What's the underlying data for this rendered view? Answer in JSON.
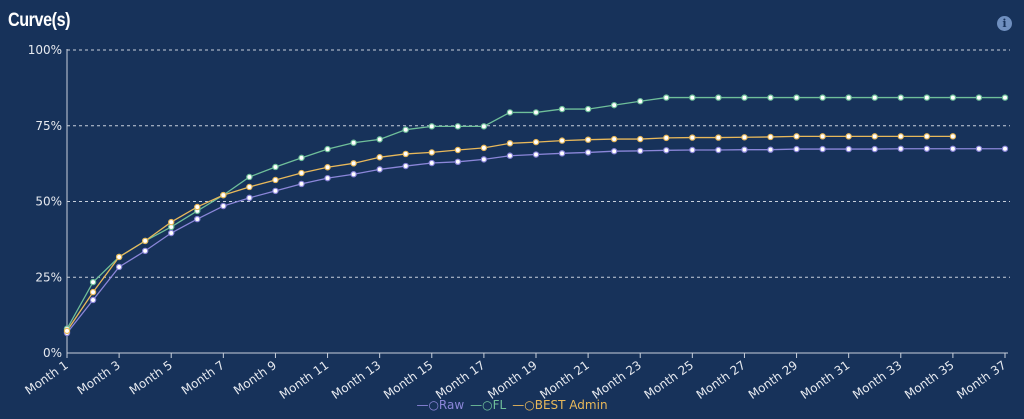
{
  "header": {
    "title": "Curve(s)",
    "info_icon": "info-icon"
  },
  "chart_data": {
    "type": "line",
    "title": "Curve(s)",
    "xlabel": "",
    "ylabel": "",
    "x": [
      "Month 1",
      "Month 2",
      "Month 3",
      "Month 4",
      "Month 5",
      "Month 6",
      "Month 7",
      "Month 8",
      "Month 9",
      "Month 10",
      "Month 11",
      "Month 12",
      "Month 13",
      "Month 14",
      "Month 15",
      "Month 16",
      "Month 17",
      "Month 18",
      "Month 19",
      "Month 20",
      "Month 21",
      "Month 22",
      "Month 23",
      "Month 24",
      "Month 25",
      "Month 26",
      "Month 27",
      "Month 28",
      "Month 29",
      "Month 30",
      "Month 31",
      "Month 32",
      "Month 33",
      "Month 34",
      "Month 35",
      "Month 36",
      "Month 37"
    ],
    "x_tick_labels": [
      "Month 1",
      "Month 3",
      "Month 5",
      "Month 7",
      "Month 9",
      "Month 11",
      "Month 13",
      "Month 15",
      "Month 17",
      "Month 19",
      "Month 21",
      "Month 23",
      "Month 25",
      "Month 27",
      "Month 29",
      "Month 31",
      "Month 33",
      "Month 35",
      "Month 37"
    ],
    "y_tick_labels": [
      "0%",
      "25%",
      "50%",
      "75%",
      "100%"
    ],
    "ylim": [
      0,
      100
    ],
    "grid": "horizontal dashed",
    "legend": "bottom",
    "series": [
      {
        "name": "Raw",
        "color": "#8b86d9",
        "values": [
          6.6,
          17.5,
          28.4,
          33.7,
          39.6,
          44.2,
          48.5,
          51.2,
          53.5,
          55.8,
          57.7,
          59.0,
          60.6,
          61.7,
          62.7,
          63.1,
          63.9,
          65.1,
          65.5,
          65.9,
          66.2,
          66.6,
          66.7,
          66.9,
          67.0,
          67.0,
          67.1,
          67.1,
          67.3,
          67.3,
          67.3,
          67.3,
          67.4,
          67.4,
          67.4,
          67.4,
          67.4
        ]
      },
      {
        "name": "FL",
        "color": "#6fbf9a",
        "values": [
          8.0,
          23.4,
          31.7,
          37.0,
          41.6,
          46.9,
          52.1,
          58.1,
          61.4,
          64.4,
          67.3,
          69.4,
          70.5,
          73.7,
          74.8,
          74.8,
          74.8,
          79.4,
          79.4,
          80.5,
          80.5,
          81.8,
          83.1,
          84.3,
          84.3,
          84.3,
          84.3,
          84.3,
          84.3,
          84.3,
          84.3,
          84.3,
          84.3,
          84.3,
          84.3,
          84.3,
          84.3
        ]
      },
      {
        "name": "BEST Admin",
        "color": "#e8b85a",
        "values": [
          7.3,
          20.1,
          31.7,
          37.0,
          43.2,
          48.2,
          52.1,
          54.8,
          57.1,
          59.4,
          61.3,
          62.6,
          64.6,
          65.7,
          66.2,
          67.0,
          67.7,
          69.2,
          69.6,
          70.1,
          70.4,
          70.6,
          70.6,
          71.0,
          71.1,
          71.1,
          71.2,
          71.3,
          71.5,
          71.5,
          71.5,
          71.5,
          71.5,
          71.5,
          71.5,
          null,
          null
        ]
      }
    ]
  }
}
